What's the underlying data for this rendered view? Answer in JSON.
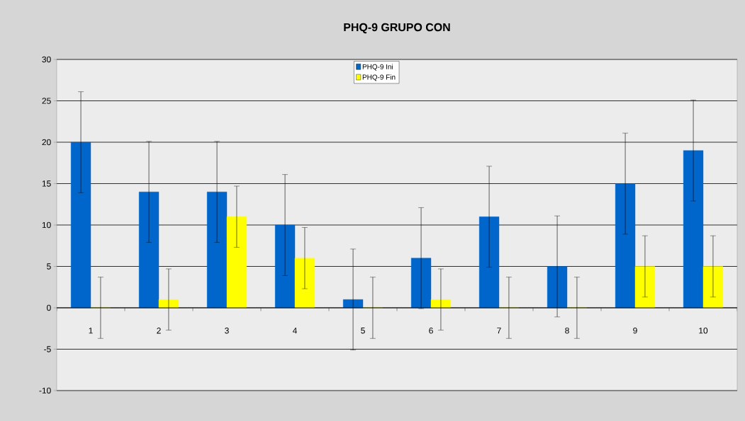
{
  "chart_data": {
    "type": "bar",
    "title": "PHQ-9 GRUPO CON",
    "categories": [
      "1",
      "2",
      "3",
      "4",
      "5",
      "6",
      "7",
      "8",
      "9",
      "10"
    ],
    "series": [
      {
        "name": "PHQ-9 Ini",
        "color": "#0066cc",
        "values": [
          20,
          14,
          14,
          10,
          1,
          6,
          11,
          5,
          15,
          19
        ],
        "errors": [
          6.1,
          6.1,
          6.1,
          6.1,
          6.1,
          6.1,
          6.1,
          6.1,
          6.1,
          6.1
        ]
      },
      {
        "name": "PHQ-9 Fin",
        "color": "#ffff00",
        "values": [
          0,
          1,
          11,
          6,
          0,
          1,
          0,
          0,
          5,
          5
        ],
        "errors": [
          3.7,
          3.7,
          3.7,
          3.7,
          3.7,
          3.7,
          3.7,
          3.7,
          3.7,
          3.7
        ]
      }
    ],
    "ylim": [
      -10,
      30
    ],
    "yticks": [
      -10,
      -5,
      0,
      5,
      10,
      15,
      20,
      25,
      30
    ],
    "grid": "y",
    "legend": "top"
  }
}
